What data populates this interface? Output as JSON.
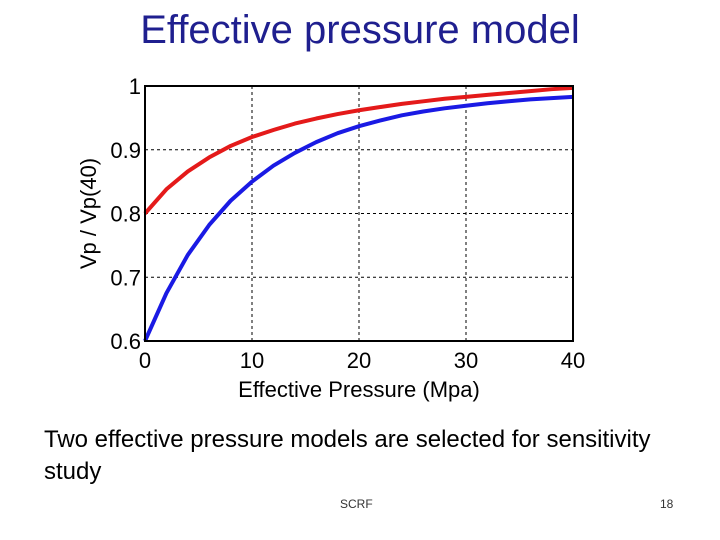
{
  "slide": {
    "title": "Effective pressure model",
    "caption": "Two effective pressure models are selected for sensitivity study",
    "footer_center": "SCRF",
    "page_number": "18"
  },
  "chart_data": {
    "type": "line",
    "title": "",
    "xlabel": "Effective Pressure (Mpa)",
    "ylabel": "Vp / Vp(40)",
    "xlim": [
      0,
      40
    ],
    "ylim": [
      0.6,
      1
    ],
    "xticks": [
      0,
      10,
      20,
      30,
      40
    ],
    "yticks": [
      0.6,
      0.7,
      0.8,
      0.9,
      1
    ],
    "xtick_labels": [
      "0",
      "10",
      "20",
      "30",
      "40"
    ],
    "ytick_labels": [
      "0.6",
      "0.7",
      "0.8",
      "0.9",
      "1"
    ],
    "grid": true,
    "grid_style": "dashed",
    "series": [
      {
        "color": "#e41a1a",
        "x": [
          0,
          2,
          4,
          6,
          8,
          10,
          12,
          14,
          16,
          18,
          20,
          22,
          24,
          26,
          28,
          30,
          32,
          34,
          36,
          38,
          40
        ],
        "y": [
          0.8,
          0.838,
          0.866,
          0.888,
          0.906,
          0.92,
          0.931,
          0.941,
          0.949,
          0.956,
          0.962,
          0.967,
          0.972,
          0.976,
          0.98,
          0.983,
          0.986,
          0.989,
          0.992,
          0.995,
          0.997
        ]
      },
      {
        "color": "#1a1ae4",
        "x": [
          0,
          2,
          4,
          6,
          8,
          10,
          12,
          14,
          16,
          18,
          20,
          22,
          24,
          26,
          28,
          30,
          32,
          34,
          36,
          38,
          40
        ],
        "y": [
          0.6,
          0.675,
          0.735,
          0.782,
          0.82,
          0.85,
          0.875,
          0.895,
          0.912,
          0.926,
          0.937,
          0.946,
          0.954,
          0.96,
          0.965,
          0.969,
          0.973,
          0.976,
          0.979,
          0.981,
          0.983
        ]
      }
    ]
  }
}
